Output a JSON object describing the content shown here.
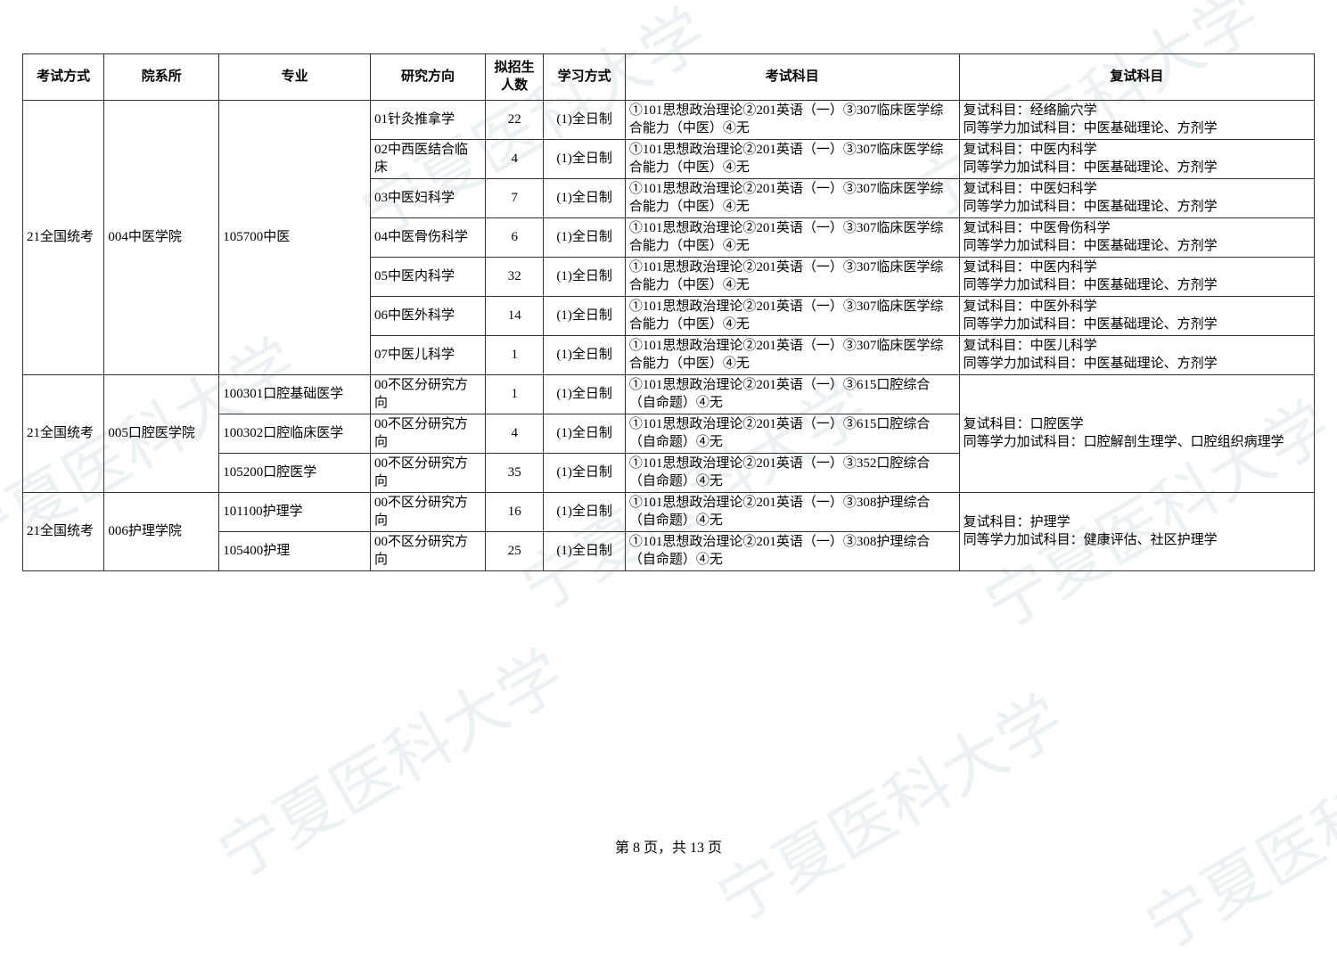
{
  "watermark_text": "宁夏医科大学",
  "page_footer": "第 8 页，共 13 页",
  "columns": {
    "exam_type": "考试方式",
    "department": "院系所",
    "major": "专业",
    "direction": "研究方向",
    "enroll_count": "拟招生人数",
    "study_mode": "学习方式",
    "exam_subjects": "考试科目",
    "retest_subjects": "复试科目"
  },
  "groups": [
    {
      "exam_type": "21全国统考",
      "department": "004中医学院",
      "majors": [
        {
          "major": "105700中医",
          "rows": [
            {
              "direction": "01针灸推拿学",
              "count": "22",
              "study_mode": "(1)全日制",
              "subjects": "①101思想政治理论②201英语（一）③307临床医学综合能力（中医）④无",
              "retest": "复试科目：经络腧穴学\n同等学力加试科目：中医基础理论、方剂学"
            },
            {
              "direction": "02中西医结合临床",
              "count": "4",
              "study_mode": "(1)全日制",
              "subjects": "①101思想政治理论②201英语（一）③307临床医学综合能力（中医）④无",
              "retest": "复试科目：中医内科学\n同等学力加试科目：中医基础理论、方剂学"
            },
            {
              "direction": "03中医妇科学",
              "count": "7",
              "study_mode": "(1)全日制",
              "subjects": "①101思想政治理论②201英语（一）③307临床医学综合能力（中医）④无",
              "retest": "复试科目：中医妇科学\n同等学力加试科目：中医基础理论、方剂学"
            },
            {
              "direction": "04中医骨伤科学",
              "count": "6",
              "study_mode": "(1)全日制",
              "subjects": "①101思想政治理论②201英语（一）③307临床医学综合能力（中医）④无",
              "retest": "复试科目：中医骨伤科学\n同等学力加试科目：中医基础理论、方剂学"
            },
            {
              "direction": "05中医内科学",
              "count": "32",
              "study_mode": "(1)全日制",
              "subjects": "①101思想政治理论②201英语（一）③307临床医学综合能力（中医）④无",
              "retest": "复试科目：中医内科学\n同等学力加试科目：中医基础理论、方剂学"
            },
            {
              "direction": "06中医外科学",
              "count": "14",
              "study_mode": "(1)全日制",
              "subjects": "①101思想政治理论②201英语（一）③307临床医学综合能力（中医）④无",
              "retest": "复试科目：中医外科学\n同等学力加试科目：中医基础理论、方剂学"
            },
            {
              "direction": "07中医儿科学",
              "count": "1",
              "study_mode": "(1)全日制",
              "subjects": "①101思想政治理论②201英语（一）③307临床医学综合能力（中医）④无",
              "retest": "复试科目：中医儿科学\n同等学力加试科目：中医基础理论、方剂学"
            }
          ]
        }
      ]
    },
    {
      "exam_type": "21全国统考",
      "department": "005口腔医学院",
      "retest_merged": "复试科目：口腔医学\n同等学力加试科目：口腔解剖生理学、口腔组织病理学",
      "majors": [
        {
          "major": "100301口腔基础医学",
          "rows": [
            {
              "direction": "00不区分研究方向",
              "count": "1",
              "study_mode": "(1)全日制",
              "subjects": "①101思想政治理论②201英语（一）③615口腔综合（自命题）④无"
            }
          ]
        },
        {
          "major": "100302口腔临床医学",
          "rows": [
            {
              "direction": "00不区分研究方向",
              "count": "4",
              "study_mode": "(1)全日制",
              "subjects": "①101思想政治理论②201英语（一）③615口腔综合（自命题）④无"
            }
          ]
        },
        {
          "major": "105200口腔医学",
          "rows": [
            {
              "direction": "00不区分研究方向",
              "count": "35",
              "study_mode": "(1)全日制",
              "subjects": "①101思想政治理论②201英语（一）③352口腔综合（自命题）④无"
            }
          ]
        }
      ]
    },
    {
      "exam_type": "21全国统考",
      "department": "006护理学院",
      "retest_merged": "复试科目：护理学\n同等学力加试科目：健康评估、社区护理学",
      "majors": [
        {
          "major": "101100护理学",
          "rows": [
            {
              "direction": "00不区分研究方向",
              "count": "16",
              "study_mode": "(1)全日制",
              "subjects": "①101思想政治理论②201英语（一）③308护理综合（自命题）④无"
            }
          ]
        },
        {
          "major": "105400护理",
          "rows": [
            {
              "direction": "00不区分研究方向",
              "count": "25",
              "study_mode": "(1)全日制",
              "subjects": "①101思想政治理论②201英语（一）③308护理综合（自命题）④无"
            }
          ]
        }
      ]
    }
  ]
}
